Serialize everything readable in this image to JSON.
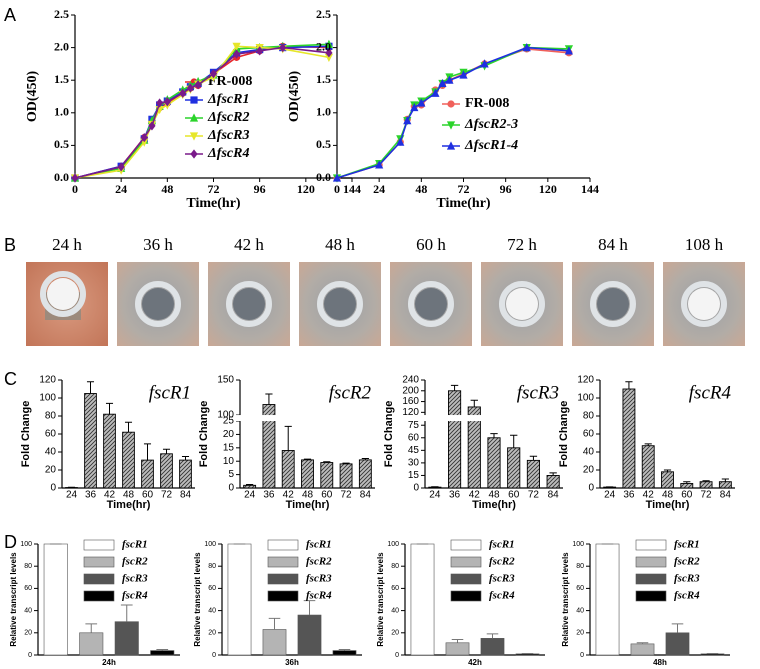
{
  "panel_labels": [
    "A",
    "B",
    "C",
    "D"
  ],
  "photo_labels": [
    "24 h",
    "36 h",
    "42 h",
    "48 h",
    "60 h",
    "72 h",
    "84 h",
    "108 h"
  ],
  "chart_data": [
    {
      "type": "line",
      "xlabel": "Time(hr)",
      "ylabel": "OD(450)",
      "x": [
        0,
        24,
        36,
        40,
        44,
        48,
        56,
        60,
        64,
        72,
        84,
        96,
        108,
        132
      ],
      "xlim": [
        0,
        144
      ],
      "xticks": [
        0,
        24,
        48,
        72,
        96,
        120,
        144
      ],
      "ylim": [
        0,
        2.5
      ],
      "yticks": [
        {
          "value": 0,
          "label": "0.0"
        },
        {
          "value": 0.5,
          "label": "0.5"
        },
        {
          "value": 1,
          "label": "1.0"
        },
        {
          "value": 1.5,
          "label": "1.5"
        },
        {
          "value": 2,
          "label": "2.0"
        },
        {
          "value": 2.5,
          "label": "2.5"
        }
      ],
      "series": [
        {
          "name": "FR-008",
          "color": "#e8282b",
          "marker": "circle",
          "values": [
            0,
            0.18,
            0.62,
            0.85,
            1.08,
            1.15,
            1.3,
            1.38,
            1.42,
            1.6,
            1.85,
            1.95,
            2.02,
            2.0
          ]
        },
        {
          "name": "ΔfscR1",
          "color": "#1f2fe0",
          "marker": "square",
          "values": [
            0,
            0.18,
            0.6,
            0.9,
            1.12,
            1.18,
            1.32,
            1.4,
            1.45,
            1.62,
            1.92,
            1.97,
            2.0,
            2.02
          ]
        },
        {
          "name": "ΔfscR2",
          "color": "#2bd42b",
          "marker": "triangle",
          "values": [
            0,
            0.15,
            0.58,
            0.88,
            1.1,
            1.2,
            1.35,
            1.42,
            1.48,
            1.58,
            1.98,
            2.0,
            2.02,
            2.05
          ]
        },
        {
          "name": "ΔfscR3",
          "color": "#e6e62a",
          "marker": "triangle-down",
          "values": [
            0,
            0.12,
            0.55,
            0.82,
            1.05,
            1.12,
            1.28,
            1.36,
            1.44,
            1.55,
            2.02,
            2.0,
            1.98,
            1.85
          ]
        },
        {
          "name": "ΔfscR4",
          "color": "#7a1a8a",
          "marker": "diamond",
          "values": [
            0,
            0.17,
            0.62,
            0.8,
            1.15,
            1.17,
            1.3,
            1.38,
            1.43,
            1.6,
            1.9,
            1.95,
            2.0,
            1.92
          ]
        }
      ]
    },
    {
      "type": "line",
      "xlabel": "Time(hr)",
      "ylabel": "OD(450)",
      "x": [
        0,
        24,
        36,
        40,
        44,
        48,
        56,
        60,
        64,
        72,
        84,
        108,
        132
      ],
      "xlim": [
        0,
        144
      ],
      "xticks": [
        0,
        24,
        48,
        72,
        96,
        120,
        144
      ],
      "ylim": [
        0,
        2.5
      ],
      "yticks": [
        {
          "value": 0,
          "label": "0.0"
        },
        {
          "value": 0.5,
          "label": "0.5"
        },
        {
          "value": 1,
          "label": "1.0"
        },
        {
          "value": 1.5,
          "label": "1.5"
        },
        {
          "value": 2,
          "label": "2.0"
        },
        {
          "value": 2.5,
          "label": "2.5"
        }
      ],
      "series": [
        {
          "name": "FR-008",
          "color": "#f0605a",
          "marker": "circle",
          "values": [
            0,
            0.2,
            0.55,
            0.9,
            1.1,
            1.12,
            1.35,
            1.42,
            1.5,
            1.6,
            1.75,
            1.98,
            1.92
          ]
        },
        {
          "name": "ΔfscR2-3",
          "color": "#2bd42b",
          "marker": "triangle-down",
          "values": [
            0,
            0.22,
            0.6,
            0.88,
            1.12,
            1.18,
            1.32,
            1.45,
            1.55,
            1.62,
            1.72,
            2.0,
            1.98
          ]
        },
        {
          "name": "ΔfscR1-4",
          "color": "#1f2fe0",
          "marker": "triangle",
          "values": [
            0,
            0.2,
            0.55,
            0.88,
            1.08,
            1.15,
            1.3,
            1.45,
            1.5,
            1.58,
            1.75,
            2.0,
            1.95
          ]
        }
      ]
    },
    {
      "type": "bar",
      "title": "fscR1",
      "xlabel": "Time(hr)",
      "ylabel": "Fold Change",
      "categories": [
        "24",
        "36",
        "42",
        "48",
        "60",
        "72",
        "84"
      ],
      "values": [
        0.5,
        105,
        82,
        62,
        31,
        38,
        31
      ],
      "errors": [
        0.3,
        13,
        12,
        11,
        18,
        5,
        4
      ],
      "ylim": [
        0,
        120
      ],
      "yticks": [
        0,
        20,
        40,
        60,
        80,
        100,
        120
      ]
    },
    {
      "type": "bar",
      "title": "fscR2",
      "xlabel": "Time(hr)",
      "ylabel": "Fold Change",
      "categories": [
        "24",
        "36",
        "42",
        "48",
        "60",
        "72",
        "84"
      ],
      "values": [
        1,
        115,
        14,
        10.5,
        9.5,
        9,
        10.5
      ],
      "errors": [
        0.3,
        15,
        9,
        0.3,
        0.3,
        0.3,
        0.5
      ],
      "ylim": [
        0,
        150
      ],
      "ybreak": [
        25,
        100
      ],
      "yticks": [
        0,
        5,
        10,
        15,
        20,
        25,
        100,
        150
      ]
    },
    {
      "type": "bar",
      "title": "fscR3",
      "xlabel": "Time(hr)",
      "ylabel": "Fold Change",
      "categories": [
        "24",
        "36",
        "42",
        "48",
        "60",
        "72",
        "84"
      ],
      "values": [
        1,
        200,
        140,
        60,
        48,
        33,
        15
      ],
      "errors": [
        0.5,
        20,
        25,
        5,
        15,
        5,
        3
      ],
      "ylim": [
        0,
        240
      ],
      "ybreak": [
        80,
        110
      ],
      "yticks": [
        0,
        15,
        30,
        45,
        60,
        75,
        120,
        160,
        200,
        240
      ]
    },
    {
      "type": "bar",
      "title": "fscR4",
      "xlabel": "Time(hr)",
      "ylabel": "Fold Change",
      "categories": [
        "24",
        "36",
        "42",
        "48",
        "60",
        "72",
        "84"
      ],
      "values": [
        1,
        110,
        47,
        18,
        5,
        7,
        7
      ],
      "errors": [
        0.3,
        8,
        2,
        2,
        2,
        1,
        3
      ],
      "ylim": [
        0,
        120
      ],
      "yticks": [
        0,
        20,
        40,
        60,
        80,
        100,
        120
      ]
    },
    {
      "type": "grouped_bar",
      "ylabel": "Relative transcript levels",
      "categories": [
        "24h"
      ],
      "ylim": [
        0,
        100
      ],
      "yticks": [
        0,
        20,
        40,
        60,
        80,
        100
      ],
      "series": [
        {
          "name": "fscR1",
          "color": "#ffffff",
          "values": [
            100
          ],
          "errors": [
            0
          ]
        },
        {
          "name": "fscR2",
          "color": "#b4b4b4",
          "values": [
            20
          ],
          "errors": [
            8
          ]
        },
        {
          "name": "fscR3",
          "color": "#555555",
          "values": [
            30
          ],
          "errors": [
            15
          ]
        },
        {
          "name": "fscR4",
          "color": "#000000",
          "values": [
            4
          ],
          "errors": [
            1
          ]
        }
      ]
    },
    {
      "type": "grouped_bar",
      "ylabel": "Relative transcript levels",
      "categories": [
        "36h"
      ],
      "ylim": [
        0,
        100
      ],
      "yticks": [
        0,
        20,
        40,
        60,
        80,
        100
      ],
      "series": [
        {
          "name": "fscR1",
          "color": "#ffffff",
          "values": [
            100
          ],
          "errors": [
            0
          ]
        },
        {
          "name": "fscR2",
          "color": "#b4b4b4",
          "values": [
            23
          ],
          "errors": [
            10
          ]
        },
        {
          "name": "fscR3",
          "color": "#555555",
          "values": [
            36
          ],
          "errors": [
            13
          ]
        },
        {
          "name": "fscR4",
          "color": "#000000",
          "values": [
            4
          ],
          "errors": [
            1
          ]
        }
      ]
    },
    {
      "type": "grouped_bar",
      "ylabel": "Relative transcript levels",
      "categories": [
        "42h"
      ],
      "ylim": [
        0,
        100
      ],
      "yticks": [
        0,
        20,
        40,
        60,
        80,
        100
      ],
      "series": [
        {
          "name": "fscR1",
          "color": "#ffffff",
          "values": [
            100
          ],
          "errors": [
            0
          ]
        },
        {
          "name": "fscR2",
          "color": "#b4b4b4",
          "values": [
            11
          ],
          "errors": [
            3
          ]
        },
        {
          "name": "fscR3",
          "color": "#555555",
          "values": [
            15
          ],
          "errors": [
            4
          ]
        },
        {
          "name": "fscR4",
          "color": "#000000",
          "values": [
            1
          ],
          "errors": [
            0.3
          ]
        }
      ]
    },
    {
      "type": "grouped_bar",
      "ylabel": "Relative transcript levels",
      "categories": [
        "48h"
      ],
      "ylim": [
        0,
        100
      ],
      "yticks": [
        0,
        20,
        40,
        60,
        80,
        100
      ],
      "series": [
        {
          "name": "fscR1",
          "color": "#ffffff",
          "values": [
            100
          ],
          "errors": [
            0
          ]
        },
        {
          "name": "fscR2",
          "color": "#b4b4b4",
          "values": [
            10
          ],
          "errors": [
            1
          ]
        },
        {
          "name": "fscR3",
          "color": "#555555",
          "values": [
            20
          ],
          "errors": [
            8
          ]
        },
        {
          "name": "fscR4",
          "color": "#000000",
          "values": [
            1
          ],
          "errors": [
            0.3
          ]
        }
      ]
    }
  ]
}
